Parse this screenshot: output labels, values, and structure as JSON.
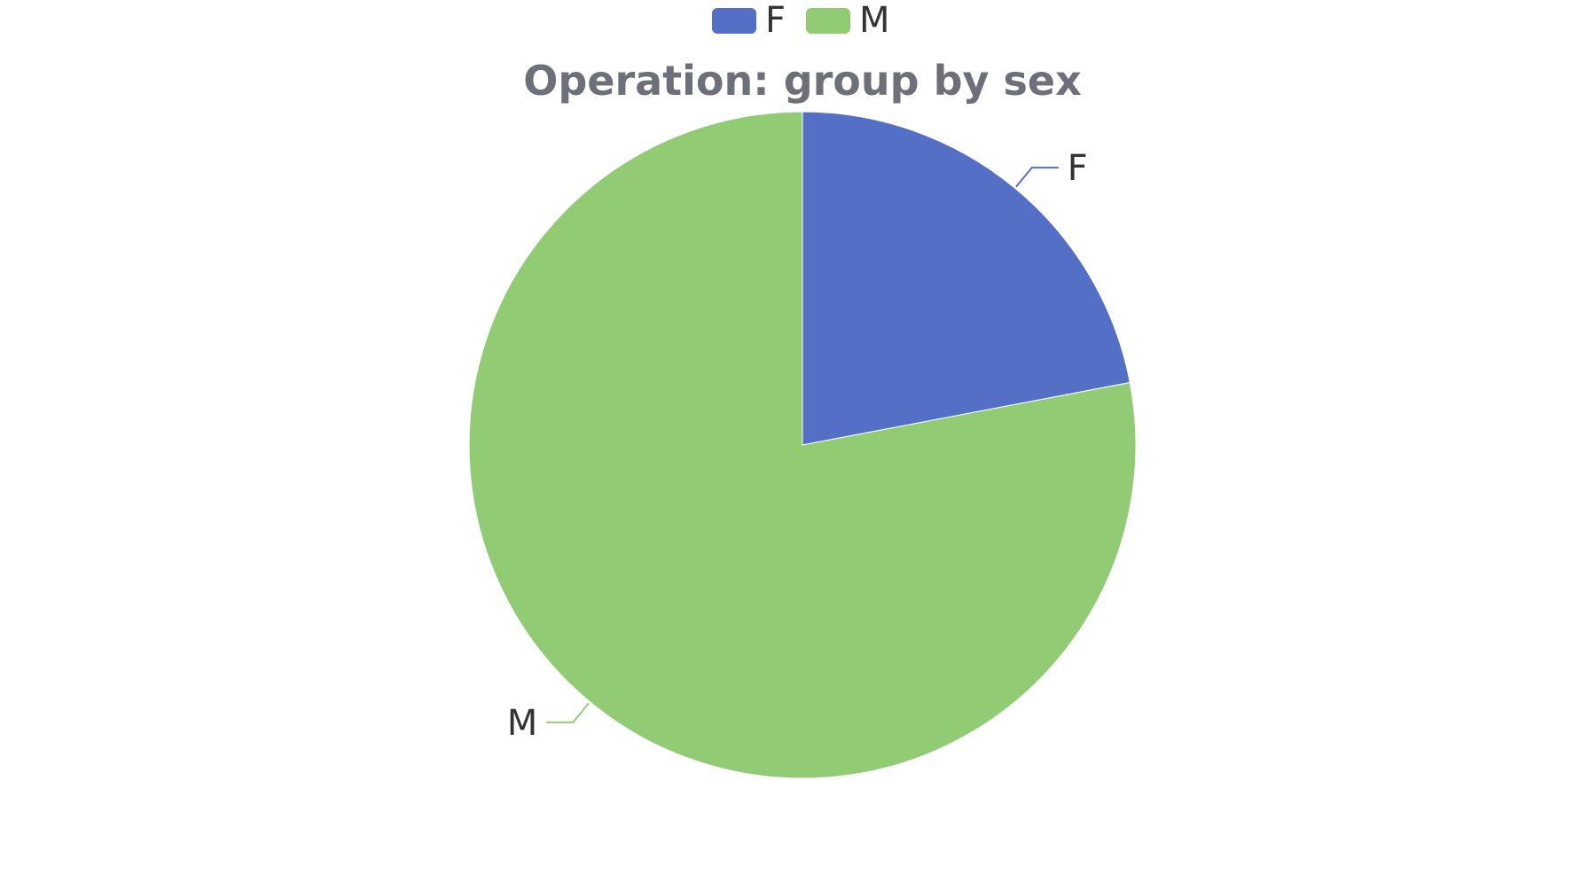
{
  "chart_data": {
    "type": "pie",
    "title": "Operation: group by sex",
    "categories": [
      "F",
      "M"
    ],
    "values": [
      22,
      78
    ],
    "colors": [
      "#5470c6",
      "#91cc75"
    ],
    "legend": {
      "position": "top-center",
      "items": [
        "F",
        "M"
      ]
    },
    "start_angle_deg": 90,
    "direction": "clockwise",
    "labels_outside": true
  }
}
